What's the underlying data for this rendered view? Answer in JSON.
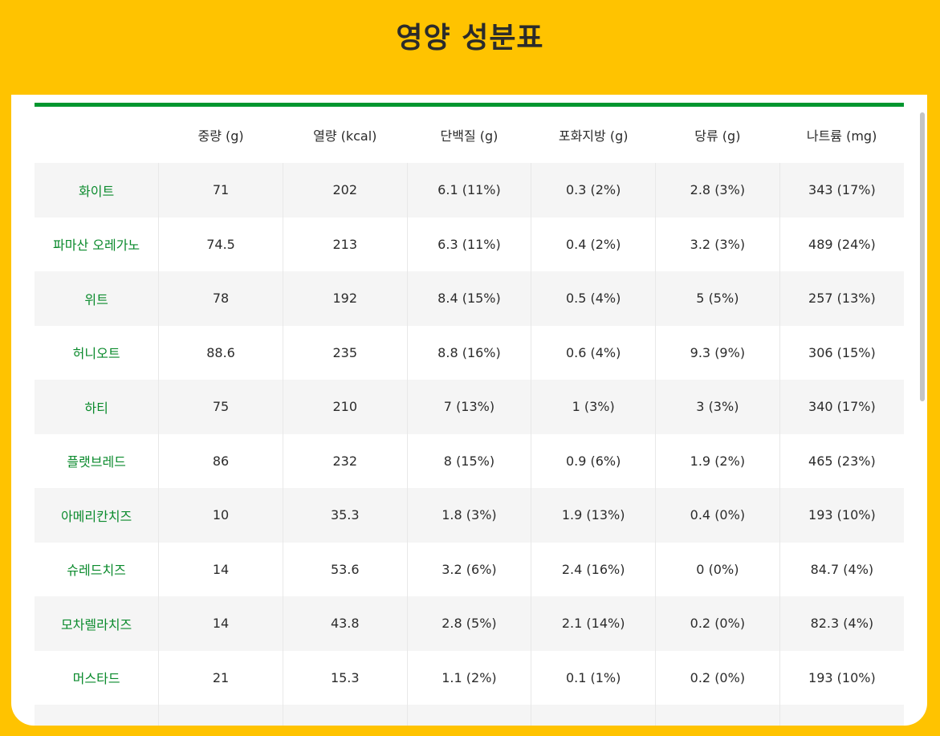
{
  "title": "영양 성분표",
  "table": {
    "columns": [
      "",
      "중량 (g)",
      "열량 (kcal)",
      "단백질 (g)",
      "포화지방 (g)",
      "당류 (g)",
      "나트륨 (mg)"
    ],
    "rows": [
      [
        "화이트",
        "71",
        "202",
        "6.1 (11%)",
        "0.3 (2%)",
        "2.8 (3%)",
        "343 (17%)"
      ],
      [
        "파마산 오레가노",
        "74.5",
        "213",
        "6.3 (11%)",
        "0.4 (2%)",
        "3.2 (3%)",
        "489 (24%)"
      ],
      [
        "위트",
        "78",
        "192",
        "8.4 (15%)",
        "0.5 (4%)",
        "5 (5%)",
        "257 (13%)"
      ],
      [
        "허니오트",
        "88.6",
        "235",
        "8.8 (16%)",
        "0.6 (4%)",
        "9.3 (9%)",
        "306 (15%)"
      ],
      [
        "하티",
        "75",
        "210",
        "7 (13%)",
        "1 (3%)",
        "3 (3%)",
        "340 (17%)"
      ],
      [
        "플랫브레드",
        "86",
        "232",
        "8 (15%)",
        "0.9 (6%)",
        "1.9 (2%)",
        "465 (23%)"
      ],
      [
        "아메리칸치즈",
        "10",
        "35.3",
        "1.8 (3%)",
        "1.9 (13%)",
        "0.4 (0%)",
        "193 (10%)"
      ],
      [
        "슈레드치즈",
        "14",
        "53.6",
        "3.2 (6%)",
        "2.4 (16%)",
        "0 (0%)",
        "84.7 (4%)"
      ],
      [
        "모차렐라치즈",
        "14",
        "43.8",
        "2.8 (5%)",
        "2.1 (14%)",
        "0.2 (0%)",
        "82.3 (4%)"
      ],
      [
        "머스타드",
        "21",
        "15.3",
        "1.1 (2%)",
        "0.1 (1%)",
        "0.2 (0%)",
        "193 (10%)"
      ],
      [
        "",
        "",
        "",
        "",
        "",
        "",
        ""
      ]
    ]
  },
  "colors": {
    "background": "#FFC300",
    "accent_green": "#00962F",
    "row_label_green": "#0a8a2c"
  }
}
